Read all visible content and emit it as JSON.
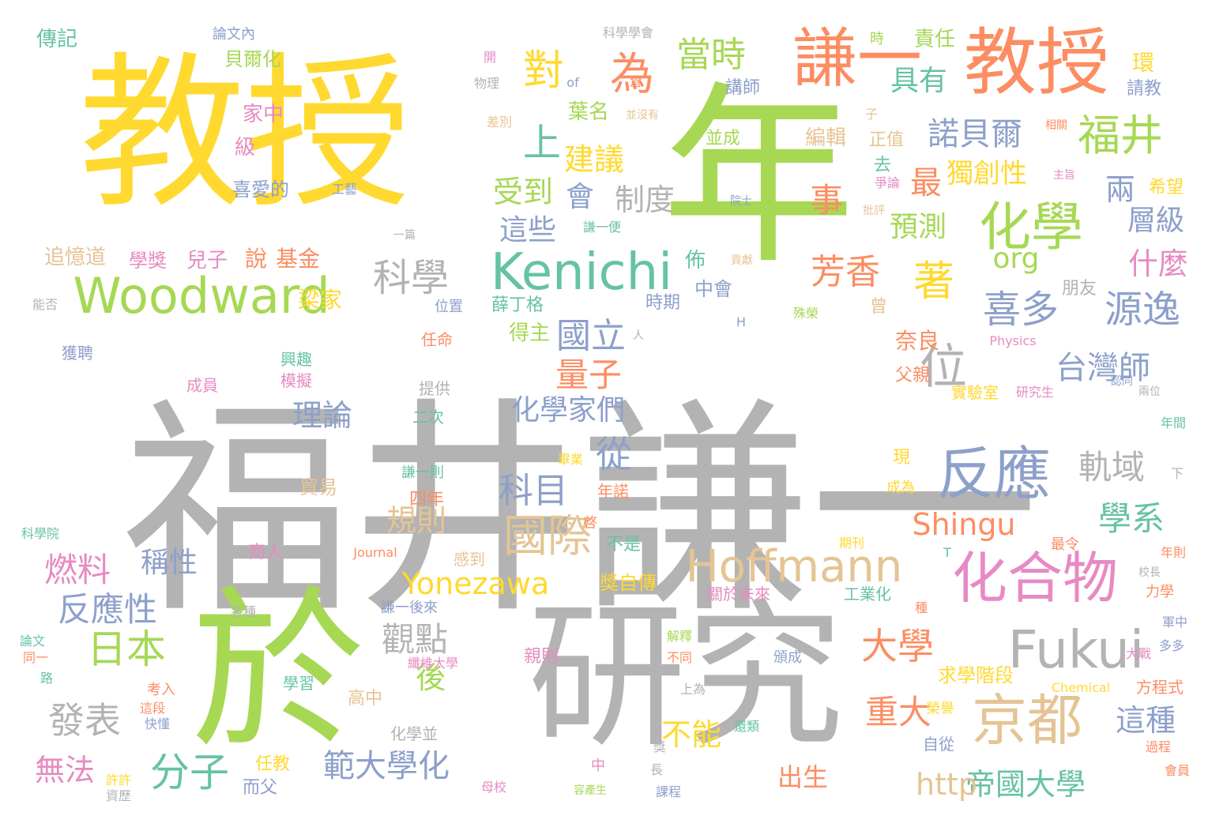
{
  "words": [
    {
      "text": "福井謙一",
      "color": "#b3b3b3"
    },
    {
      "text": "研究",
      "color": "#b3b3b3"
    },
    {
      "text": "教授",
      "color": "#ffd92f"
    },
    {
      "text": "年",
      "color": "#a6d854"
    },
    {
      "text": "於",
      "color": "#a6d854"
    },
    {
      "text": "教授",
      "color": "#fc8d62"
    },
    {
      "text": "謙一",
      "color": "#fc8d62"
    },
    {
      "text": "Kenichi",
      "color": "#66c2a5"
    },
    {
      "text": "Woodward",
      "color": "#a6d854"
    },
    {
      "text": "Hoffmann",
      "color": "#e5c494"
    },
    {
      "text": "Fukui",
      "color": "#b3b3b3"
    },
    {
      "text": "化合物",
      "color": "#e78ac3"
    },
    {
      "text": "京都",
      "color": "#e5c494"
    },
    {
      "text": "反應",
      "color": "#8da0cb"
    },
    {
      "text": "化學",
      "color": "#a6d854"
    },
    {
      "text": "福井",
      "color": "#a6d854"
    },
    {
      "text": "科學",
      "color": "#b3b3b3"
    },
    {
      "text": "國際",
      "color": "#e5c494"
    },
    {
      "text": "為",
      "color": "#fc8d62"
    },
    {
      "text": "對",
      "color": "#ffd92f"
    },
    {
      "text": "上",
      "color": "#66c2a5"
    },
    {
      "text": "當時",
      "color": "#a6d854"
    },
    {
      "text": "具有",
      "color": "#66c2a5"
    },
    {
      "text": "諾貝爾",
      "color": "#8da0cb"
    },
    {
      "text": "喜多",
      "color": "#8da0cb"
    },
    {
      "text": "源逸",
      "color": "#8da0cb"
    },
    {
      "text": "建議",
      "color": "#ffd92f"
    },
    {
      "text": "受到",
      "color": "#a6d854"
    },
    {
      "text": "會",
      "color": "#8da0cb"
    },
    {
      "text": "制度",
      "color": "#b3b3b3"
    },
    {
      "text": "這些",
      "color": "#8da0cb"
    },
    {
      "text": "事",
      "color": "#fc8d62"
    },
    {
      "text": "最",
      "color": "#fc8d62"
    },
    {
      "text": "獨創性",
      "color": "#ffd92f"
    },
    {
      "text": "預測",
      "color": "#a6d854"
    },
    {
      "text": "兩",
      "color": "#8da0cb"
    },
    {
      "text": "層級",
      "color": "#8da0cb"
    },
    {
      "text": "什麼",
      "color": "#e78ac3"
    },
    {
      "text": "芳香",
      "color": "#fc8d62"
    },
    {
      "text": "著",
      "color": "#ffd92f"
    },
    {
      "text": "org",
      "color": "#a6d854"
    },
    {
      "text": "位",
      "color": "#b3b3b3"
    },
    {
      "text": "台灣師",
      "color": "#8da0cb"
    },
    {
      "text": "量子",
      "color": "#fc8d62"
    },
    {
      "text": "國立",
      "color": "#8da0cb"
    },
    {
      "text": "理論",
      "color": "#8da0cb"
    },
    {
      "text": "化學家們",
      "color": "#8da0cb"
    },
    {
      "text": "從",
      "color": "#8da0cb"
    },
    {
      "text": "軌域",
      "color": "#b3b3b3"
    },
    {
      "text": "科目",
      "color": "#8da0cb"
    },
    {
      "text": "Shingu",
      "color": "#fc8d62"
    },
    {
      "text": "學系",
      "color": "#66c2a5"
    },
    {
      "text": "規則",
      "color": "#e5c494"
    },
    {
      "text": "燃料",
      "color": "#e78ac3"
    },
    {
      "text": "稱性",
      "color": "#8da0cb"
    },
    {
      "text": "Yonezawa",
      "color": "#ffd92f"
    },
    {
      "text": "反應性",
      "color": "#8da0cb"
    },
    {
      "text": "日本",
      "color": "#a6d854"
    },
    {
      "text": "觀點",
      "color": "#b3b3b3"
    },
    {
      "text": "大學",
      "color": "#fc8d62"
    },
    {
      "text": "後",
      "color": "#a6d854"
    },
    {
      "text": "重大",
      "color": "#fc8d62"
    },
    {
      "text": "這種",
      "color": "#8da0cb"
    },
    {
      "text": "發表",
      "color": "#b3b3b3"
    },
    {
      "text": "分子",
      "color": "#66c2a5"
    },
    {
      "text": "範大學化",
      "color": "#8da0cb"
    },
    {
      "text": "帝國大學",
      "color": "#66c2a5"
    },
    {
      "text": "無法",
      "color": "#e78ac3"
    },
    {
      "text": "不能",
      "color": "#ffd92f"
    },
    {
      "text": "出生",
      "color": "#fc8d62"
    },
    {
      "text": "http",
      "color": "#e5c494"
    },
    {
      "text": "貝爾化",
      "color": "#a6d854"
    },
    {
      "text": "論文內",
      "color": "#8da0cb"
    },
    {
      "text": "傳記",
      "color": "#66c2a5"
    },
    {
      "text": "科學學會",
      "color": "#b3b3b3"
    },
    {
      "text": "責任",
      "color": "#a6d854"
    },
    {
      "text": "時",
      "color": "#a6d854"
    },
    {
      "text": "環",
      "color": "#ffd92f"
    },
    {
      "text": "請教",
      "color": "#8da0cb"
    },
    {
      "text": "講師",
      "color": "#8da0cb"
    },
    {
      "text": "葉名",
      "color": "#a6d854"
    },
    {
      "text": "並沒有",
      "color": "#e5c494"
    },
    {
      "text": "家中",
      "color": "#e78ac3"
    },
    {
      "text": "級",
      "color": "#e78ac3"
    },
    {
      "text": "編輯",
      "color": "#e5c494"
    },
    {
      "text": "正值",
      "color": "#e5c494"
    },
    {
      "text": "並成",
      "color": "#a6d854"
    },
    {
      "text": "喜愛的",
      "color": "#8da0cb"
    },
    {
      "text": "工藝",
      "color": "#8da0cb"
    },
    {
      "text": "學獎",
      "color": "#e78ac3"
    },
    {
      "text": "兒子",
      "color": "#e78ac3"
    },
    {
      "text": "說",
      "color": "#fc8d62"
    },
    {
      "text": "基金",
      "color": "#fc8d62"
    },
    {
      "text": "追憶道",
      "color": "#e5c494"
    },
    {
      "text": "佈",
      "color": "#66c2a5"
    },
    {
      "text": "中會",
      "color": "#8da0cb"
    },
    {
      "text": "朋友",
      "color": "#b3b3b3"
    },
    {
      "text": "梁家",
      "color": "#ffd92f"
    },
    {
      "text": "薛丁格",
      "color": "#66c2a5"
    },
    {
      "text": "時期",
      "color": "#8da0cb"
    },
    {
      "text": "得主",
      "color": "#a6d854"
    },
    {
      "text": "任命",
      "color": "#fc8d62"
    },
    {
      "text": "奈良",
      "color": "#fc8d62"
    },
    {
      "text": "父親",
      "color": "#fc8d62"
    },
    {
      "text": "實驗室",
      "color": "#ffd92f"
    },
    {
      "text": "研究生",
      "color": "#e78ac3"
    },
    {
      "text": "獲聘",
      "color": "#8da0cb"
    },
    {
      "text": "興趣",
      "color": "#66c2a5"
    },
    {
      "text": "模擬",
      "color": "#e78ac3"
    },
    {
      "text": "成員",
      "color": "#e78ac3"
    },
    {
      "text": "提供",
      "color": "#b3b3b3"
    },
    {
      "text": "二次",
      "color": "#66c2a5"
    },
    {
      "text": "貿易",
      "color": "#e5c494"
    },
    {
      "text": "四年",
      "color": "#fc8d62"
    },
    {
      "text": "謙一則",
      "color": "#66c2a5"
    },
    {
      "text": "畢業",
      "color": "#ffd92f"
    },
    {
      "text": "年諾",
      "color": "#fc8d62"
    },
    {
      "text": "成為",
      "color": "#ffd92f"
    },
    {
      "text": "商人",
      "color": "#e78ac3"
    },
    {
      "text": "感到",
      "color": "#e5c494"
    },
    {
      "text": "不是",
      "color": "#66c2a5"
    },
    {
      "text": "獎自傳",
      "color": "#ffd92f"
    },
    {
      "text": "Journal",
      "color": "#fc8d62"
    },
    {
      "text": "期刊",
      "color": "#ffd92f"
    },
    {
      "text": "最令",
      "color": "#fc8d62"
    },
    {
      "text": "工業化",
      "color": "#66c2a5"
    },
    {
      "text": "關於未來",
      "color": "#e78ac3"
    },
    {
      "text": "謙一後來",
      "color": "#8da0cb"
    },
    {
      "text": "解釋",
      "color": "#a6d854"
    },
    {
      "text": "親則",
      "color": "#e78ac3"
    },
    {
      "text": "纖維大學",
      "color": "#e78ac3"
    },
    {
      "text": "學習",
      "color": "#66c2a5"
    },
    {
      "text": "高中",
      "color": "#e5c494"
    },
    {
      "text": "化學並",
      "color": "#b3b3b3"
    },
    {
      "text": "考入",
      "color": "#fc8d62"
    },
    {
      "text": "求學階段",
      "color": "#ffd92f"
    },
    {
      "text": "方程式",
      "color": "#fc8d62"
    },
    {
      "text": "Chemical",
      "color": "#ffd92f"
    },
    {
      "text": "任教",
      "color": "#ffd92f"
    },
    {
      "text": "而父",
      "color": "#8da0cb"
    },
    {
      "text": "母校",
      "color": "#e78ac3"
    },
    {
      "text": "容產生",
      "color": "#a6d854"
    },
    {
      "text": "課程",
      "color": "#8da0cb"
    },
    {
      "text": "自從",
      "color": "#8da0cb"
    },
    {
      "text": "會員",
      "color": "#fc8d62"
    },
    {
      "text": "過程",
      "color": "#fc8d62"
    },
    {
      "text": "年間",
      "color": "#66c2a5"
    },
    {
      "text": "年則",
      "color": "#fc8d62"
    },
    {
      "text": "力學",
      "color": "#fc8d62"
    },
    {
      "text": "軍中",
      "color": "#8da0cb"
    },
    {
      "text": "大戰",
      "color": "#e78ac3"
    },
    {
      "text": "多多",
      "color": "#8da0cb"
    },
    {
      "text": "科學院",
      "color": "#66c2a5"
    },
    {
      "text": "能否",
      "color": "#b3b3b3"
    },
    {
      "text": "Physics",
      "color": "#e78ac3"
    },
    {
      "text": "希望",
      "color": "#ffd92f"
    },
    {
      "text": "院士",
      "color": "#8da0cb"
    },
    {
      "text": "殊榮",
      "color": "#a6d854"
    },
    {
      "text": "位置",
      "color": "#8da0cb"
    },
    {
      "text": "物理",
      "color": "#b3b3b3"
    },
    {
      "text": "of",
      "color": "#8da0cb"
    },
    {
      "text": "倉",
      "color": "#fc8d62"
    },
    {
      "text": "相關",
      "color": "#fc8d62"
    },
    {
      "text": "差別",
      "color": "#e5c494"
    },
    {
      "text": "開",
      "color": "#e78ac3"
    },
    {
      "text": "批評",
      "color": "#e5c494"
    },
    {
      "text": "一篇",
      "color": "#b3b3b3"
    },
    {
      "text": "謙一便",
      "color": "#66c2a5"
    },
    {
      "text": "貢獻",
      "color": "#e5c494"
    },
    {
      "text": "兩位",
      "color": "#b3b3b3"
    },
    {
      "text": "認同",
      "color": "#8da0cb"
    },
    {
      "text": "各種",
      "color": "#b3b3b3"
    },
    {
      "text": "同一",
      "color": "#fc8d62"
    },
    {
      "text": "路",
      "color": "#66c2a5"
    },
    {
      "text": "論文",
      "color": "#66c2a5"
    },
    {
      "text": "這段",
      "color": "#fc8d62"
    },
    {
      "text": "快懂",
      "color": "#8da0cb"
    },
    {
      "text": "許許",
      "color": "#ffd92f"
    },
    {
      "text": "資歷",
      "color": "#b3b3b3"
    },
    {
      "text": "還類",
      "color": "#66c2a5"
    },
    {
      "text": "上為",
      "color": "#b3b3b3"
    },
    {
      "text": "不同",
      "color": "#fc8d62"
    },
    {
      "text": "頒成",
      "color": "#8da0cb"
    },
    {
      "text": "中",
      "color": "#e78ac3"
    },
    {
      "text": "長",
      "color": "#b3b3b3"
    },
    {
      "text": "啓",
      "color": "#fc8d62"
    },
    {
      "text": "現",
      "color": "#ffd92f"
    },
    {
      "text": "曾",
      "color": "#e5c494"
    },
    {
      "text": "去",
      "color": "#66c2a5"
    },
    {
      "text": "子",
      "color": "#e5c494"
    },
    {
      "text": "T",
      "color": "#66c2a5"
    },
    {
      "text": "H",
      "color": "#8da0cb"
    },
    {
      "text": "下",
      "color": "#b3b3b3"
    },
    {
      "text": "人",
      "color": "#b3b3b3"
    },
    {
      "text": "種",
      "color": "#fc8d62"
    },
    {
      "text": "校長",
      "color": "#b3b3b3"
    },
    {
      "text": "主旨",
      "color": "#e78ac3"
    },
    {
      "text": "爭論",
      "color": "#e78ac3"
    },
    {
      "text": "榮譽",
      "color": "#ffd92f"
    },
    {
      "text": "獎",
      "color": "#b3b3b3"
    },
    {
      "text": "獲",
      "color": "#fc8d62"
    }
  ]
}
